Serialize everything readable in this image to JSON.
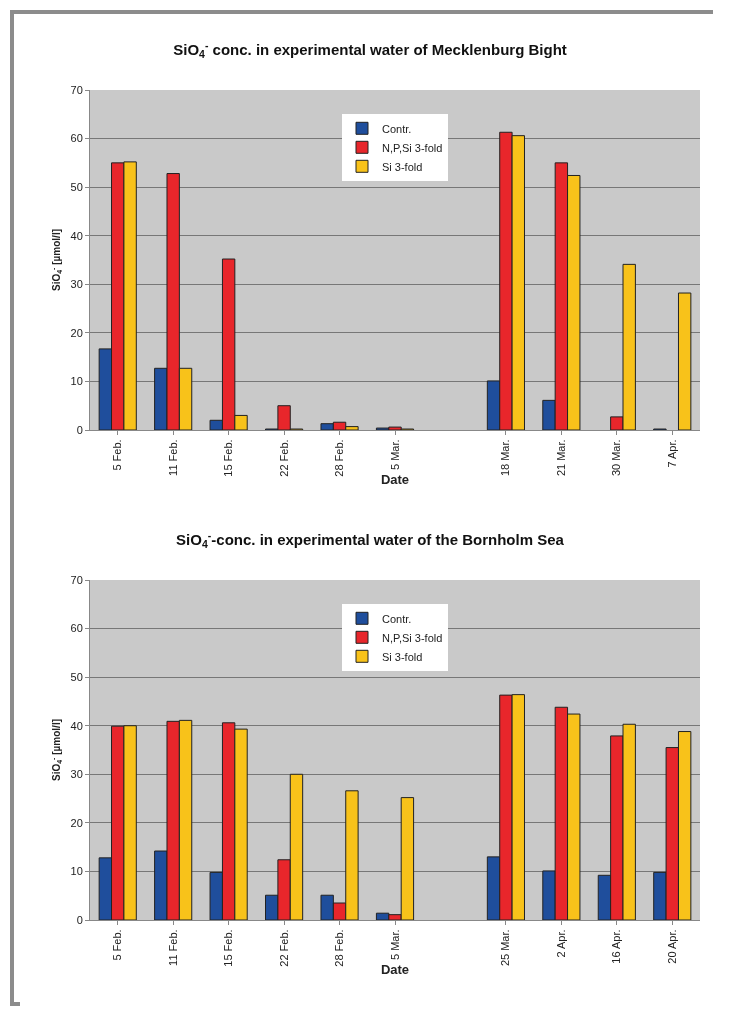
{
  "chart_data": [
    {
      "type": "bar",
      "title": "SiO$_{4}$$^{-}$ conc. in experimental water of Mecklenburg Bight",
      "xlabel": "Date",
      "ylabel": "SiO$_{4}$$^{-}$ [µmol/l]",
      "categories": [
        "5 Feb.",
        "11 Feb.",
        "15 Feb.",
        "22 Feb.",
        "28 Feb.",
        "5 Mar.",
        null,
        "18 Mar.",
        "21 Mar.",
        "30 Mar.",
        "7 Apr."
      ],
      "series": [
        {
          "name": "Contr.",
          "color": "#1f4e9c",
          "values": [
            16.7,
            12.7,
            2.0,
            0.2,
            1.3,
            0.4,
            null,
            10.1,
            6.1,
            null,
            0.2
          ]
        },
        {
          "name": "N,P,Si 3-fold",
          "color": "#e8262b",
          "values": [
            55.0,
            52.8,
            35.2,
            5.0,
            1.6,
            0.6,
            null,
            61.3,
            55.0,
            2.7,
            null
          ]
        },
        {
          "name": "Si 3-fold",
          "color": "#f8c21a",
          "values": [
            55.2,
            12.7,
            3.0,
            0.2,
            0.7,
            0.2,
            null,
            60.6,
            52.4,
            34.1,
            28.2
          ]
        }
      ],
      "ylim": [
        0,
        70
      ],
      "yticks": [
        0,
        10,
        20,
        30,
        40,
        50,
        60,
        70
      ],
      "grid": "y",
      "legend": "top"
    },
    {
      "type": "bar",
      "title": "SiO$_{4}$$^{-}$-conc. in experimental water of the Bornholm Sea",
      "xlabel": "Date",
      "ylabel": "SiO$_{4}$$^{-}$ [µmol/l]",
      "categories": [
        "5 Feb.",
        "11 Feb.",
        "15 Feb.",
        "22 Feb.",
        "28 Feb.",
        "5 Mar.",
        null,
        "25 Mar.",
        "2 Apr.",
        "16 Apr.",
        "20 Apr."
      ],
      "series": [
        {
          "name": "Contr.",
          "color": "#1f4e9c",
          "values": [
            12.8,
            14.2,
            9.8,
            5.1,
            5.1,
            1.4,
            null,
            13.0,
            10.1,
            9.2,
            9.8
          ]
        },
        {
          "name": "N,P,Si 3-fold",
          "color": "#e8262b",
          "values": [
            39.9,
            40.9,
            40.6,
            12.4,
            3.5,
            1.1,
            null,
            46.3,
            43.8,
            37.9,
            35.5
          ]
        },
        {
          "name": "Si 3-fold",
          "color": "#f8c21a",
          "values": [
            40.0,
            41.1,
            39.3,
            30.0,
            26.6,
            25.2,
            null,
            46.4,
            42.4,
            40.3,
            38.8
          ]
        }
      ],
      "ylim": [
        0,
        70
      ],
      "yticks": [
        0,
        10,
        20,
        30,
        40,
        50,
        60,
        70
      ],
      "grid": "y",
      "legend": "top"
    }
  ]
}
